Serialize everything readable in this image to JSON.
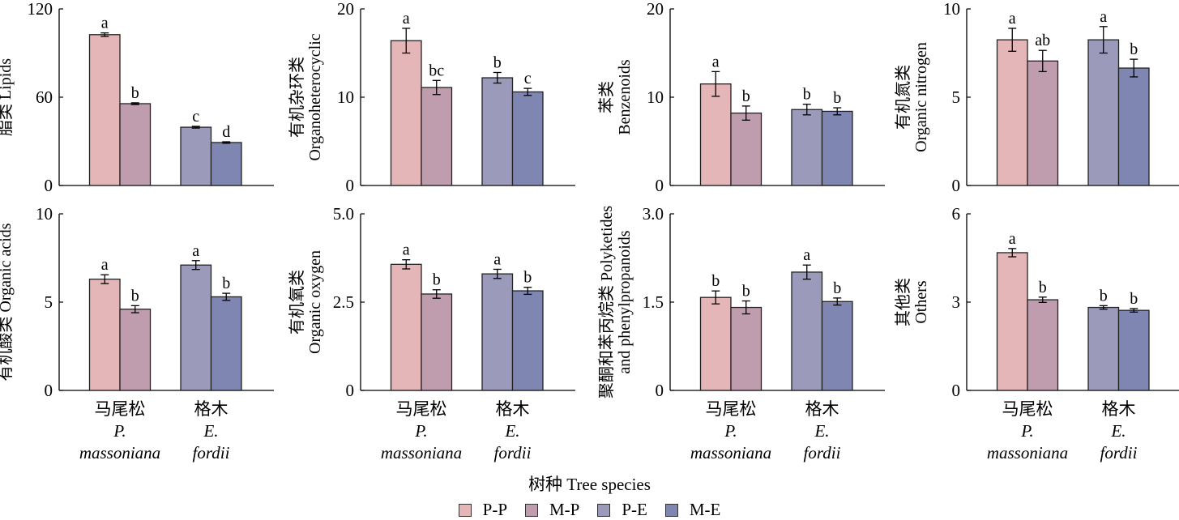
{
  "chart_data": {
    "type": "bar",
    "layout": "2x4 grid of grouped bar panels with error bars",
    "categories": [
      {
        "zh": "马尾松",
        "latin_1": "P.",
        "latin_2": "massoniana"
      },
      {
        "zh": "格木",
        "latin_1": "E.",
        "latin_2": "fordii"
      }
    ],
    "xlabel": "树种 Tree species",
    "legend": {
      "placement": "bottom-center",
      "entries": [
        {
          "name": "P-P",
          "color": "#e4b6b8"
        },
        {
          "name": "M-P",
          "color": "#c09dae"
        },
        {
          "name": "P-E",
          "color": "#9b9aba"
        },
        {
          "name": "M-E",
          "color": "#7f86b2"
        }
      ]
    },
    "panels": [
      {
        "ylabel_lines": [
          "脂类 Lipids"
        ],
        "ylim": [
          0,
          120
        ],
        "yticks": [
          "0",
          "60",
          "120"
        ],
        "ytick_values": [
          0,
          60,
          120
        ],
        "bars": [
          {
            "series": "P-P",
            "category": 0,
            "value": 102.5,
            "error": 1.2,
            "letter": "a"
          },
          {
            "series": "M-P",
            "category": 0,
            "value": 55.6,
            "error": 0.6,
            "letter": "b"
          },
          {
            "series": "P-E",
            "category": 1,
            "value": 39.6,
            "error": 0.6,
            "letter": "c"
          },
          {
            "series": "M-E",
            "category": 1,
            "value": 29.2,
            "error": 0.5,
            "letter": "d"
          }
        ]
      },
      {
        "ylabel_lines": [
          "有机杂环类",
          "Organoheterocyclic"
        ],
        "ylim": [
          0,
          20
        ],
        "yticks": [
          "0",
          "10",
          "20"
        ],
        "ytick_values": [
          0,
          10,
          20
        ],
        "bars": [
          {
            "series": "P-P",
            "category": 0,
            "value": 16.4,
            "error": 1.4,
            "letter": "a"
          },
          {
            "series": "M-P",
            "category": 0,
            "value": 11.1,
            "error": 0.8,
            "letter": "bc"
          },
          {
            "series": "P-E",
            "category": 1,
            "value": 12.2,
            "error": 0.6,
            "letter": "b"
          },
          {
            "series": "M-E",
            "category": 1,
            "value": 10.6,
            "error": 0.4,
            "letter": "c"
          }
        ]
      },
      {
        "ylabel_lines": [
          "苯类",
          "Benzenoids"
        ],
        "ylim": [
          0,
          20
        ],
        "yticks": [
          "0",
          "10",
          "20"
        ],
        "ytick_values": [
          0,
          10,
          20
        ],
        "bars": [
          {
            "series": "P-P",
            "category": 0,
            "value": 11.5,
            "error": 1.4,
            "letter": "a"
          },
          {
            "series": "M-P",
            "category": 0,
            "value": 8.2,
            "error": 0.8,
            "letter": "b"
          },
          {
            "series": "P-E",
            "category": 1,
            "value": 8.6,
            "error": 0.6,
            "letter": "b"
          },
          {
            "series": "M-E",
            "category": 1,
            "value": 8.4,
            "error": 0.4,
            "letter": "b"
          }
        ]
      },
      {
        "ylabel_lines": [
          "有机氮类",
          "Organic nitrogen"
        ],
        "ylim": [
          0,
          10
        ],
        "yticks": [
          "0",
          "5",
          "10"
        ],
        "ytick_values": [
          0,
          5,
          10
        ],
        "bars": [
          {
            "series": "P-P",
            "category": 0,
            "value": 8.25,
            "error": 0.65,
            "letter": "a"
          },
          {
            "series": "M-P",
            "category": 0,
            "value": 7.05,
            "error": 0.6,
            "letter": "ab"
          },
          {
            "series": "P-E",
            "category": 1,
            "value": 8.25,
            "error": 0.75,
            "letter": "a"
          },
          {
            "series": "M-E",
            "category": 1,
            "value": 6.65,
            "error": 0.5,
            "letter": "b"
          }
        ]
      },
      {
        "ylabel_lines": [
          "有机酸类 Organic acids"
        ],
        "ylim": [
          0,
          10
        ],
        "yticks": [
          "0",
          "5",
          "10"
        ],
        "ytick_values": [
          0,
          5,
          10
        ],
        "bars": [
          {
            "series": "P-P",
            "category": 0,
            "value": 6.3,
            "error": 0.25,
            "letter": "a"
          },
          {
            "series": "M-P",
            "category": 0,
            "value": 4.6,
            "error": 0.2,
            "letter": "b"
          },
          {
            "series": "P-E",
            "category": 1,
            "value": 7.1,
            "error": 0.25,
            "letter": "a"
          },
          {
            "series": "M-E",
            "category": 1,
            "value": 5.3,
            "error": 0.2,
            "letter": "b"
          }
        ]
      },
      {
        "ylabel_lines": [
          "有机氧类",
          "Organic oxygen"
        ],
        "ylim": [
          0,
          5
        ],
        "yticks": [
          "0",
          "2.5",
          "5.0"
        ],
        "ytick_values": [
          0,
          2.5,
          5
        ],
        "bars": [
          {
            "series": "P-P",
            "category": 0,
            "value": 3.57,
            "error": 0.13,
            "letter": "a"
          },
          {
            "series": "M-P",
            "category": 0,
            "value": 2.73,
            "error": 0.12,
            "letter": "b"
          },
          {
            "series": "P-E",
            "category": 1,
            "value": 3.3,
            "error": 0.13,
            "letter": "a"
          },
          {
            "series": "M-E",
            "category": 1,
            "value": 2.82,
            "error": 0.1,
            "letter": "b"
          }
        ]
      },
      {
        "ylabel_lines": [
          "聚酮和苯丙烷类 Polyketides",
          "and phenylpropanoids"
        ],
        "ylim": [
          0,
          3
        ],
        "yticks": [
          "0",
          "1.5",
          "3.0"
        ],
        "ytick_values": [
          0,
          1.5,
          3
        ],
        "bars": [
          {
            "series": "P-P",
            "category": 0,
            "value": 1.58,
            "error": 0.11,
            "letter": "b"
          },
          {
            "series": "M-P",
            "category": 0,
            "value": 1.41,
            "error": 0.11,
            "letter": "b"
          },
          {
            "series": "P-E",
            "category": 1,
            "value": 2.01,
            "error": 0.12,
            "letter": "a"
          },
          {
            "series": "M-E",
            "category": 1,
            "value": 1.51,
            "error": 0.06,
            "letter": "b"
          }
        ]
      },
      {
        "ylabel_lines": [
          "其他类",
          "Others"
        ],
        "ylim": [
          0,
          6
        ],
        "yticks": [
          "0",
          "3",
          "6"
        ],
        "ytick_values": [
          0,
          3,
          6
        ],
        "bars": [
          {
            "series": "P-P",
            "category": 0,
            "value": 4.68,
            "error": 0.14,
            "letter": "a"
          },
          {
            "series": "M-P",
            "category": 0,
            "value": 3.08,
            "error": 0.09,
            "letter": "b"
          },
          {
            "series": "P-E",
            "category": 1,
            "value": 2.82,
            "error": 0.06,
            "letter": "b"
          },
          {
            "series": "M-E",
            "category": 1,
            "value": 2.72,
            "error": 0.06,
            "letter": "b"
          }
        ]
      }
    ]
  }
}
